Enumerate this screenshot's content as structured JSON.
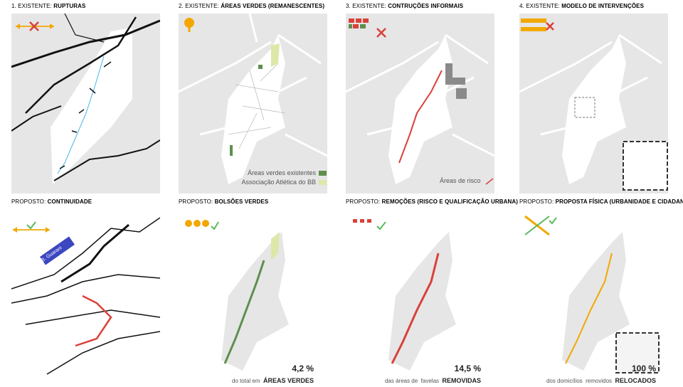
{
  "top_row": [
    {
      "prefix": "1. EXISTENTE: ",
      "title": "RUPTURAS"
    },
    {
      "prefix": "2. EXISTENTE: ",
      "title": "ÁREAS VERDES (REMANESCENTES)"
    },
    {
      "prefix": "3. EXISTENTE: ",
      "title": "CONTRUÇÕES INFORMAIS"
    },
    {
      "prefix": "4. EXISTENTE: ",
      "title": "MODELO DE INTERVENÇÕES"
    }
  ],
  "bottom_row": [
    {
      "prefix": "PROPOSTO: ",
      "title": "CONTINUIDADE"
    },
    {
      "prefix": "PROPOSTO: ",
      "title": "BOLSÕES VERDES"
    },
    {
      "prefix": "PROPOSTO: ",
      "title": "REMOÇÕES (RISCO E QUALIFICAÇÃO URBANA)"
    },
    {
      "prefix": "PROPOSTO: ",
      "title": "PROPOSTA FÍSICA (URBANIDADE E CIDADANIA)"
    }
  ],
  "legend_green": {
    "existing": "Áreas verdes existentes",
    "association": "Associação Atlética do BB"
  },
  "legend_risk": "Áreas de risco",
  "stat_green": {
    "value": "4,2 %",
    "line": "do total em",
    "strong": "ÁREAS VERDES"
  },
  "stat_removal": {
    "value": "14,5 %",
    "line1": "das áreas de",
    "line2": "favelas",
    "strong": "REMOVIDAS"
  },
  "stat_relocated": {
    "value": "100 %",
    "line1": "dos domicílios",
    "line2": "removidos",
    "strong": "RELOCADOS"
  },
  "map_label": "B. Guarani",
  "colors": {
    "map_bg": "#e6e6e6",
    "street": "#ffffff",
    "dark_green": "#5e8f4e",
    "light_green": "#dde8a8",
    "red": "#d9413a",
    "orange": "#f2a800",
    "river": "#47b4e6",
    "road": "#111111"
  },
  "icons": [
    "double-arrow-icon",
    "x-icon",
    "tree-icon",
    "check-icon",
    "favela-icon",
    "houses-icon",
    "crossing-arrows-icon"
  ]
}
